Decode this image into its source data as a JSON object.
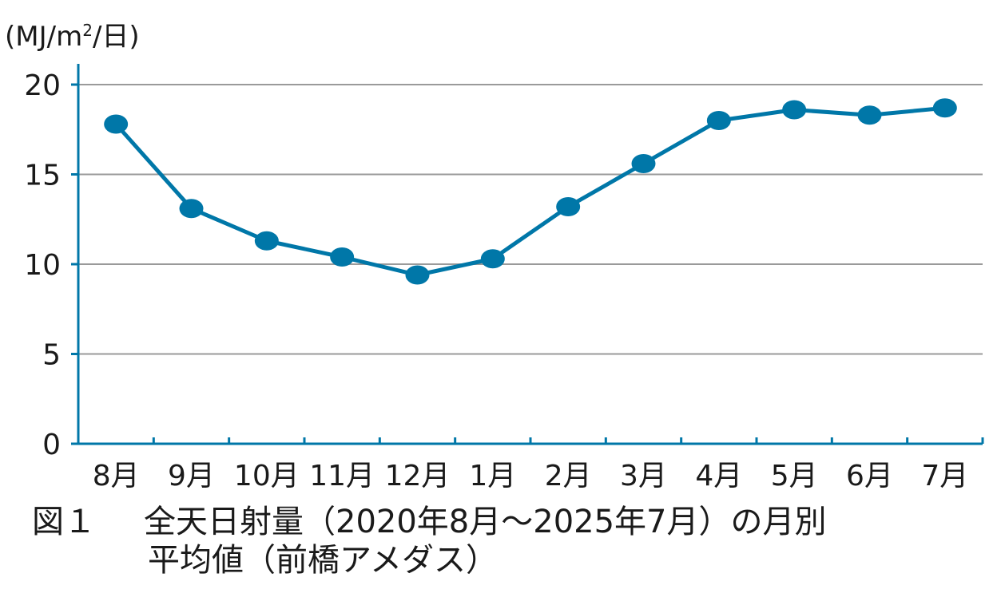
{
  "y_unit": {
    "prefix": "(MJ/m",
    "superscript": "2",
    "suffix": "/日)"
  },
  "caption": {
    "figure_label": "図１",
    "line1": "全天日射量（2020年8月〜2025年7月）の月別",
    "line2": "平均値（前橋アメダス）"
  },
  "colors": {
    "series": "#0077a8",
    "axis": "#0077a8",
    "grid": "#9a9a9a",
    "text": "#1a1a1a"
  },
  "chart_data": {
    "type": "line",
    "title": "",
    "xlabel": "",
    "ylabel": "(MJ/m2/日)",
    "categories": [
      "8月",
      "9月",
      "10月",
      "11月",
      "12月",
      "1月",
      "2月",
      "3月",
      "4月",
      "5月",
      "6月",
      "7月"
    ],
    "series": [
      {
        "values": [
          17.8,
          13.1,
          11.3,
          10.4,
          9.4,
          10.3,
          13.2,
          15.6,
          18.0,
          18.6,
          18.3,
          18.7
        ]
      }
    ],
    "ylim": [
      0,
      20
    ],
    "yticks": [
      0,
      5,
      10,
      15,
      20
    ],
    "grid": true,
    "legend": "none"
  }
}
